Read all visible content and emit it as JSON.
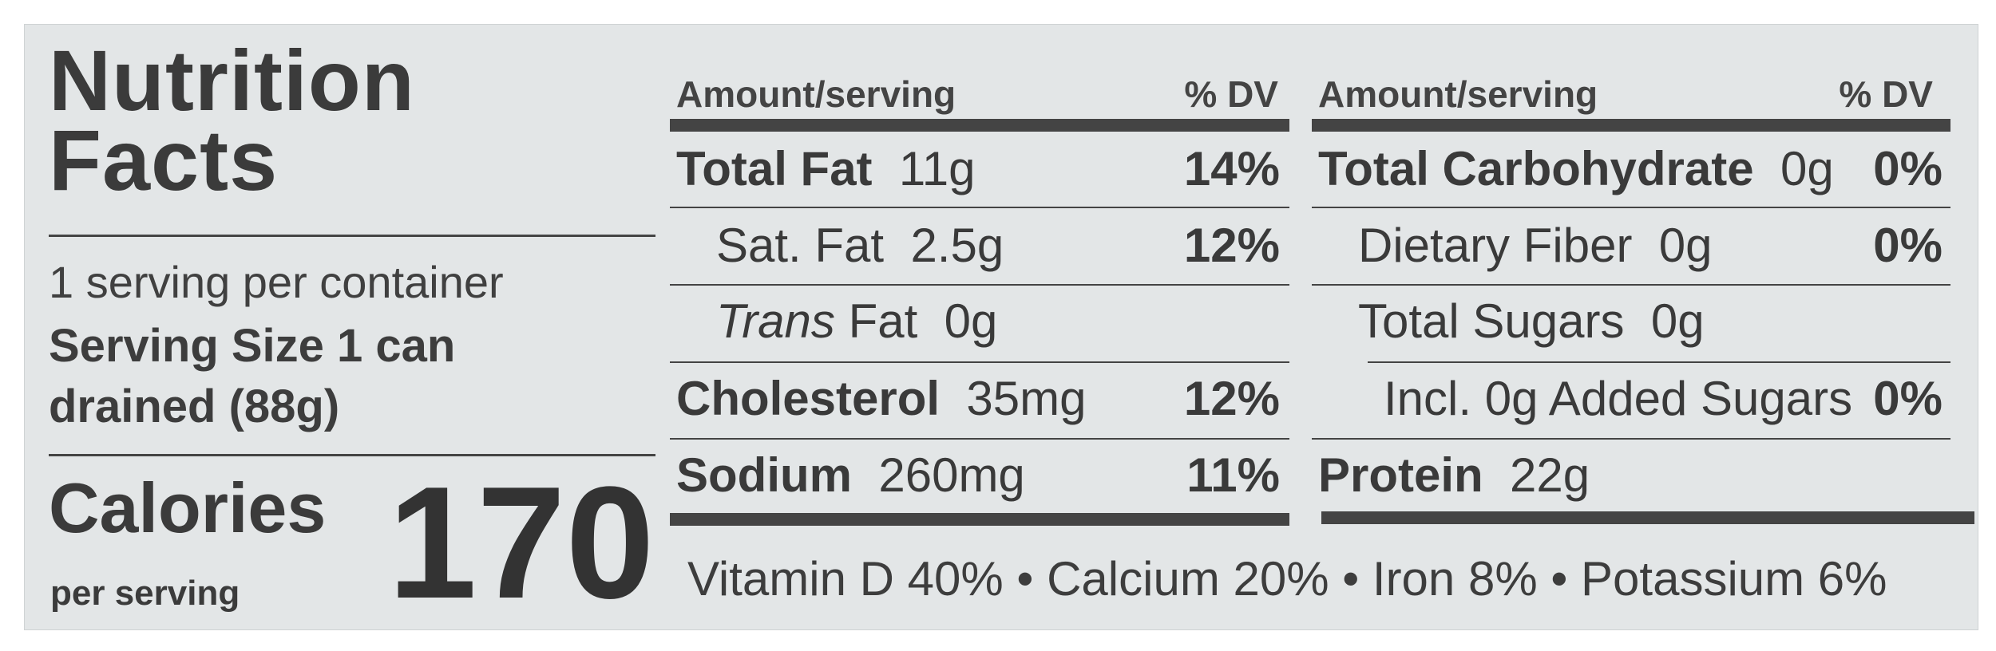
{
  "label": {
    "title_line1": "Nutrition",
    "title_line2": "Facts",
    "servings_per_container": "1 serving per container",
    "serving_size_line1": "Serving Size 1 can",
    "serving_size_line2": "drained (88g)",
    "calories_label": "Calories",
    "per_serving": "per serving",
    "calories_value": "170"
  },
  "left_table": {
    "header_amount": "Amount/serving",
    "header_dv": "% DV",
    "rows": [
      {
        "name": "Total Fat",
        "amount": "11g",
        "dv": "14%"
      },
      {
        "name": "Sat. Fat",
        "amount": "2.5g",
        "dv": "12%"
      },
      {
        "name": "Trans",
        "name_rest": "Fat",
        "amount": "0g",
        "dv": ""
      },
      {
        "name": "Cholesterol",
        "amount": "35mg",
        "dv": "12%"
      },
      {
        "name": "Sodium",
        "amount": "260mg",
        "dv": "11%"
      }
    ]
  },
  "right_table": {
    "header_amount": "Amount/serving",
    "header_dv": "% DV",
    "rows": [
      {
        "name": "Total Carbohydrate",
        "amount": "0g",
        "dv": "0%"
      },
      {
        "name": "Dietary Fiber",
        "amount": "0g",
        "dv": "0%"
      },
      {
        "name": "Total Sugars",
        "amount": "0g",
        "dv": ""
      },
      {
        "name": "Incl. 0g Added Sugars",
        "amount": "",
        "dv": "0%"
      },
      {
        "name": "Protein",
        "amount": "22g",
        "dv": ""
      }
    ]
  },
  "vitamins": "Vitamin D 40% • Calcium 20% • Iron 8% • Potassium 6%"
}
